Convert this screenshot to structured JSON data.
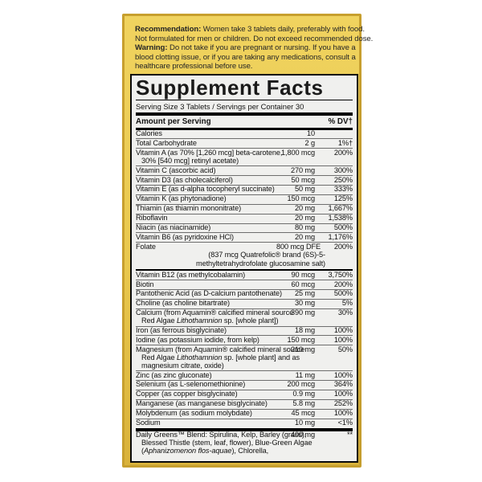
{
  "colors": {
    "page_bg": "#ffffff",
    "label_bg": "#e9c84e",
    "label_border": "#c79f2e",
    "panel_bg": "#f0f0ee",
    "bar": "#000000",
    "text": "#1c1c1c"
  },
  "notice": {
    "lines": [
      "**Recommendation:** Women take 3 tablets daily, preferably with food.",
      "Not formulated for men or children. Do not exceed recommended dose.",
      "**Warning:** Do not take if you are pregnant or nursing. If you have a",
      "blood clotting issue, or if you are taking any medications, consult a",
      "healthcare professional before use."
    ]
  },
  "facts": {
    "title": "Supplement Facts",
    "serving_line": "Serving Size 3 Tablets / Servings per Container 30",
    "header": {
      "amount_label": "Amount per Serving",
      "dv_label": "% DV†"
    },
    "rows": [
      {
        "name": [
          "Calories"
        ],
        "amount": "10",
        "dv": ""
      },
      {
        "name": [
          "Total Carbohydrate"
        ],
        "amount": "2 g",
        "dv": "1%†"
      },
      {
        "name": [
          "Vitamin A (as 70% [1,260 mcg] beta-carotene,",
          "30% [540 mcg] retinyl acetate)"
        ],
        "amount": "1,800 mcg",
        "dv": "200%"
      },
      {
        "name": [
          "Vitamin C (ascorbic acid)"
        ],
        "amount": "270 mg",
        "dv": "300%"
      },
      {
        "name": [
          "Vitamin D3 (as cholecalciferol)"
        ],
        "amount": "50 mcg",
        "dv": "250%"
      },
      {
        "name": [
          "Vitamin E (as d-alpha tocopheryl succinate)"
        ],
        "amount": "50 mg",
        "dv": "333%"
      },
      {
        "name": [
          "Vitamin K (as phytonadione)"
        ],
        "amount": "150 mcg",
        "dv": "125%"
      },
      {
        "name": [
          "Thiamin (as thiamin mononitrate)"
        ],
        "amount": "20 mg",
        "dv": "1,667%"
      },
      {
        "name": [
          "Riboflavin"
        ],
        "amount": "20 mg",
        "dv": "1,538%"
      },
      {
        "name": [
          "Niacin (as niacinamide)"
        ],
        "amount": "80 mg",
        "dv": "500%"
      },
      {
        "name": [
          "Vitamin B6 (as pyridoxine HCl)"
        ],
        "amount": "20 mg",
        "dv": "1,176%"
      },
      {
        "name": [
          "Folate"
        ],
        "amount": "800 mcg DFE",
        "dv": "200%",
        "subnote": [
          "(837 mcg Quatrefolic® brand (6S)-5-",
          "methyltetrahydrofolate glucosamine salt)"
        ],
        "sep_after": "medium"
      },
      {
        "name": [
          "Vitamin B12 (as methylcobalamin)"
        ],
        "amount": "90 mcg",
        "dv": "3,750%"
      },
      {
        "name": [
          "Biotin"
        ],
        "amount": "60 mcg",
        "dv": "200%"
      },
      {
        "name": [
          "Pantothenic Acid (as D-calcium pantothenate)"
        ],
        "amount": "25 mg",
        "dv": "500%"
      },
      {
        "name": [
          "Choline (as choline bitartrate)"
        ],
        "amount": "30 mg",
        "dv": "5%"
      },
      {
        "name": [
          "Calcium (from Aquamin® calcified mineral source",
          "Red Algae *Lithothamnion* sp. [whole plant])"
        ],
        "amount": "390 mg",
        "dv": "30%"
      },
      {
        "name": [
          "Iron (as ferrous bisglycinate)"
        ],
        "amount": "18 mg",
        "dv": "100%"
      },
      {
        "name": [
          "Iodine (as potassium iodide, from kelp)"
        ],
        "amount": "150 mcg",
        "dv": "100%"
      },
      {
        "name": [
          "Magnesium (from Aquamin® calcified mineral source",
          "Red Algae *Lithothamnion* sp. [whole plant] and as",
          "magnesium citrate, oxide)"
        ],
        "amount": "210 mg",
        "dv": "50%"
      },
      {
        "name": [
          "Zinc (as zinc gluconate)"
        ],
        "amount": "11 mg",
        "dv": "100%"
      },
      {
        "name": [
          "Selenium (as L-selenomethionine)"
        ],
        "amount": "200 mcg",
        "dv": "364%"
      },
      {
        "name": [
          "Copper (as copper bisglycinate)"
        ],
        "amount": "0.9 mg",
        "dv": "100%"
      },
      {
        "name": [
          "Manganese (as manganese bisglycinate)"
        ],
        "amount": "5.8 mg",
        "dv": "252%"
      },
      {
        "name": [
          "Molybdenum (as sodium molybdate)"
        ],
        "amount": "45 mcg",
        "dv": "100%"
      },
      {
        "name": [
          "Sodium"
        ],
        "amount": "10 mg",
        "dv": "<1%",
        "sep_after": "thick"
      },
      {
        "name": [
          "Daily Greens™ Blend: Spirulina, Kelp, Barley (grass),",
          "Blessed Thistle (stem, leaf, flower), Blue-Green Algae",
          "(*Aphanizomenon flos-aquae*), Chlorella,"
        ],
        "amount": "400 mg",
        "dv": "**",
        "sep_after": "none"
      }
    ]
  }
}
